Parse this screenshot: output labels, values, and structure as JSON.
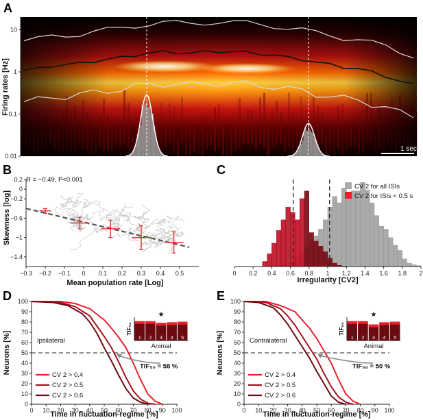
{
  "panels": {
    "a": "A",
    "b": "B",
    "c": "C",
    "d": "D",
    "e": "E"
  },
  "colors": {
    "dark_red": "#6b0a10",
    "mid_red": "#a8101c",
    "bright_red": "#e8202c",
    "grey": "#aaaaaa",
    "heat_hot": "#ffffff",
    "heat_bg": "#000000"
  },
  "chart_data": [
    {
      "panel": "A",
      "type": "heatmap",
      "ylabel": "Firing rates [Hz]",
      "yticks": [
        "10",
        "1",
        "0.1",
        "0.01"
      ],
      "yscale": "log",
      "ylim": [
        0.01,
        20
      ],
      "scale_bar": "1 sec",
      "median_rate_hz": [
        1.1,
        1.2,
        1.4,
        1.5,
        1.6,
        1.8,
        2.0,
        2.2,
        2.5,
        2.8,
        3.0,
        2.9,
        2.8,
        3.0,
        3.1,
        3.0,
        2.9,
        2.7,
        2.5,
        2.2,
        2.0,
        1.7,
        1.5,
        1.3,
        1.2,
        1.0,
        0.8,
        0.6,
        0.5
      ],
      "markers": [
        "dashed vertical line at first peak",
        "dashed vertical line at second peak"
      ]
    },
    {
      "panel": "B",
      "type": "scatter",
      "annotation": "R = −0.49, P<0.001",
      "xlabel": "Mean population rate [Log]",
      "ylabel": "Skewness [log]",
      "xticks": [
        "−0.3",
        "−0.2",
        "−0.1",
        "0",
        "0.1",
        "0.2",
        "0.3",
        "0.4",
        "0.5"
      ],
      "yticks": [
        "0.2",
        "0",
        "−0.2",
        "−0.6",
        "−1",
        "−1.4"
      ],
      "xlim": [
        -0.3,
        0.6
      ],
      "ylim": [
        -1.6,
        0.2
      ],
      "fit_line": {
        "x": [
          -0.3,
          0.55
        ],
        "y": [
          -0.4,
          -1.2
        ]
      },
      "binned_means": [
        {
          "x": -0.2,
          "y": -0.45,
          "xerr": 0.03,
          "yerr": 0.05
        },
        {
          "x": -0.02,
          "y": -0.7,
          "xerr": 0.05,
          "yerr": 0.12
        },
        {
          "x": 0.14,
          "y": -0.82,
          "xerr": 0.05,
          "yerr": 0.18
        },
        {
          "x": 0.3,
          "y": -1.0,
          "xerr": 0.05,
          "yerr": 0.25
        },
        {
          "x": 0.47,
          "y": -1.1,
          "xerr": 0.05,
          "yerr": 0.22
        }
      ]
    },
    {
      "panel": "C",
      "type": "bar",
      "xlabel": "Irregularity [CV2]",
      "xticks": [
        "0",
        "0.2",
        "0.4",
        "0.6",
        "0.8",
        "1",
        "1.2",
        "1.4",
        "1.6",
        "1.8",
        "2"
      ],
      "xlim": [
        0,
        2
      ],
      "legend": [
        "CV  2 for all ISIs",
        "CV  2 for ISIs < 0.5 s"
      ],
      "bin_width": 0.05,
      "all_isis": {
        "x_start": 0.3,
        "counts": [
          1,
          2,
          3,
          5,
          6,
          8,
          12,
          22,
          32,
          48,
          62,
          72,
          88,
          110,
          140,
          165,
          150,
          185,
          170,
          178,
          178,
          198,
          180,
          150,
          120,
          95,
          88,
          68,
          50,
          38,
          18,
          8,
          4,
          2
        ]
      },
      "short_isis": {
        "x_start": 0.3,
        "counts": [
          12,
          30,
          55,
          85,
          110,
          140,
          128,
          110,
          160,
          178,
          80,
          60,
          48,
          35,
          20,
          8,
          3,
          1
        ]
      },
      "means": {
        "short": 0.63,
        "all": 1.02
      }
    },
    {
      "panel": "D",
      "type": "line",
      "label": "Ipsilateral",
      "xlabel": "Time in fluctuation-regime [%]",
      "ylabel": "Neurons [%]",
      "xticks": [
        "0",
        "10",
        "20",
        "30",
        "40",
        "50",
        "60",
        "70",
        "80",
        "90",
        "100"
      ],
      "yticks": [
        "0",
        "10",
        "20",
        "30",
        "40",
        "50",
        "60",
        "70",
        "80",
        "90",
        "100"
      ],
      "xlim": [
        0,
        100
      ],
      "ylim": [
        0,
        100
      ],
      "series": [
        {
          "name": "CV  2 > 0.4",
          "x": [
            0,
            20,
            30,
            40,
            50,
            55,
            60,
            65,
            70,
            75,
            80,
            85,
            90
          ],
          "y": [
            100,
            100,
            98,
            93,
            82,
            74,
            65,
            55,
            40,
            24,
            10,
            3,
            0
          ]
        },
        {
          "name": "CV  2 > 0.5",
          "x": [
            0,
            20,
            30,
            40,
            45,
            50,
            55,
            60,
            65,
            70,
            75,
            80,
            85
          ],
          "y": [
            100,
            99,
            95,
            86,
            76,
            66,
            55,
            41,
            26,
            13,
            5,
            1,
            0
          ]
        },
        {
          "name": "CV  2 > 0.6",
          "x": [
            0,
            15,
            25,
            35,
            40,
            45,
            50,
            55,
            60,
            65,
            70,
            75,
            80
          ],
          "y": [
            100,
            99,
            96,
            88,
            80,
            69,
            55,
            42,
            28,
            15,
            6,
            2,
            0
          ]
        }
      ],
      "threshold": 50,
      "annotation": "TIF₅₀ = 58 %",
      "inset": {
        "ylabel": "TIF₅₀",
        "xlabel": "Animal",
        "categories": [
          "1",
          "2",
          "3",
          "4",
          "5"
        ],
        "values": [
          72,
          72,
          66,
          68,
          70
        ],
        "star": "★",
        "star_index": 2
      }
    },
    {
      "panel": "E",
      "type": "line",
      "label": "Contralateral",
      "xlabel": "Time in fluctuation-regime [%]",
      "ylabel": "Neurons [%]",
      "xticks": [
        "0",
        "10",
        "20",
        "30",
        "40",
        "50",
        "60",
        "70",
        "80",
        "90",
        "100"
      ],
      "yticks": [
        "0",
        "10",
        "20",
        "30",
        "40",
        "50",
        "60",
        "70",
        "80",
        "90",
        "100"
      ],
      "xlim": [
        0,
        100
      ],
      "ylim": [
        0,
        100
      ],
      "series": [
        {
          "name": "CV  2 > 0.4",
          "x": [
            0,
            15,
            25,
            35,
            40,
            45,
            50,
            55,
            60,
            65,
            70,
            75,
            80
          ],
          "y": [
            100,
            100,
            96,
            90,
            82,
            74,
            64,
            52,
            40,
            24,
            10,
            3,
            0
          ]
        },
        {
          "name": "CV  2 > 0.5",
          "x": [
            0,
            15,
            25,
            30,
            35,
            40,
            45,
            50,
            55,
            60,
            65,
            70,
            75
          ],
          "y": [
            100,
            99,
            93,
            86,
            77,
            66,
            55,
            44,
            30,
            17,
            7,
            2,
            0
          ]
        },
        {
          "name": "CV  2 > 0.6",
          "x": [
            0,
            10,
            20,
            25,
            30,
            35,
            40,
            45,
            50,
            55,
            60,
            65,
            70
          ],
          "y": [
            100,
            99,
            94,
            87,
            78,
            67,
            56,
            45,
            32,
            20,
            8,
            2,
            0
          ]
        }
      ],
      "threshold": 50,
      "annotation": "TIF₅₀ = 50 %",
      "inset": {
        "ylabel": "TIF₅₀",
        "xlabel": "Animal",
        "categories": [
          "1",
          "2",
          "3",
          "4",
          "5"
        ],
        "values": [
          72,
          72,
          60,
          68,
          70
        ],
        "star": "★",
        "star_index": 2
      }
    }
  ]
}
